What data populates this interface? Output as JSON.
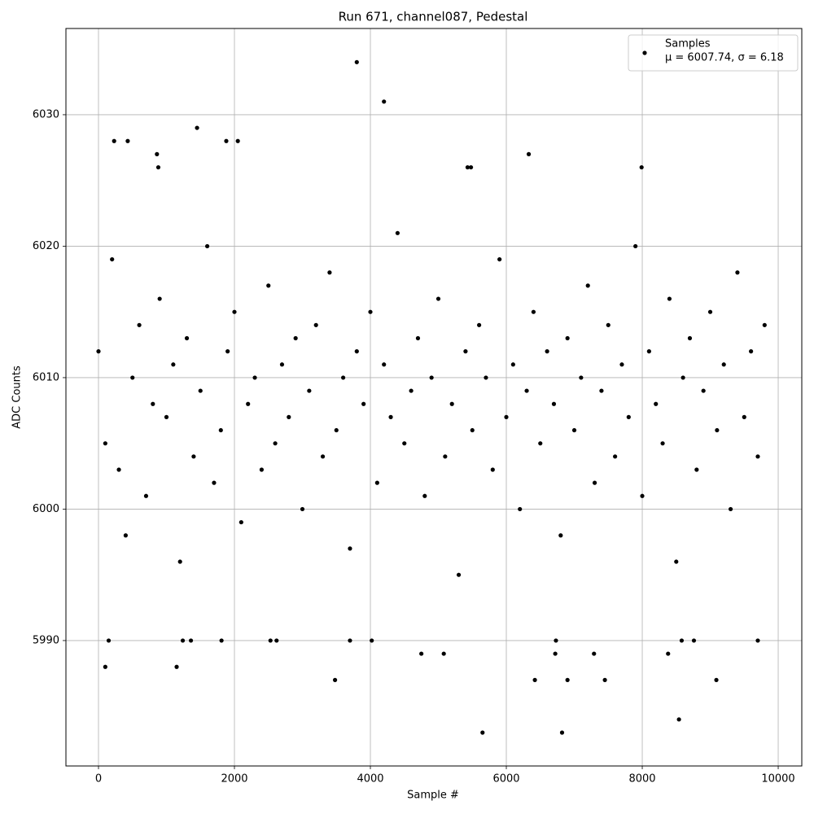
{
  "chart_data": {
    "type": "scatter",
    "title": "Run 671, channel087, Pedestal",
    "x_label": "Sample #",
    "y_label": "ADC Counts",
    "xlim": [
      -479,
      10347
    ],
    "ylim": [
      5980.46,
      6036.56
    ],
    "xticks": [
      0,
      2000,
      4000,
      6000,
      8000,
      10000
    ],
    "yticks": [
      5990,
      6000,
      6010,
      6020,
      6030
    ],
    "grid": true,
    "legend": "upper right",
    "legend_note": "μ = 6007.74, σ = 6.18",
    "series": [
      {
        "name": "Samples",
        "color": "#000000",
        "x": [
          3800,
          4200,
          1450,
          230,
          430,
          1880,
          2050,
          6330,
          860,
          880,
          5430,
          5480,
          7990,
          5650,
          6820,
          8540,
          100,
          1150,
          3480,
          6420,
          6900,
          7450,
          9090,
          150,
          1240,
          1360,
          1810,
          2530,
          2620,
          3700,
          4020,
          6730,
          8580,
          8760,
          9700,
          4750,
          5080,
          6720,
          7290,
          8380,
          0,
          100,
          200,
          300,
          400,
          500,
          600,
          700,
          800,
          900,
          1000,
          1100,
          1200,
          1300,
          1400,
          1500,
          1600,
          1700,
          1800,
          1900,
          2000,
          2100,
          2200,
          2300,
          2400,
          2500,
          2600,
          2700,
          2800,
          2900,
          3000,
          3100,
          3200,
          3300,
          3400,
          3500,
          3600,
          3700,
          3800,
          3900,
          4000,
          4100,
          4200,
          4300,
          4400,
          4500,
          4600,
          4700,
          4800,
          4900,
          5000,
          5100,
          5200,
          5300,
          5400,
          5500,
          5600,
          5700,
          5800,
          5900,
          6000,
          6100,
          6200,
          6300,
          6400,
          6500,
          6600,
          6700,
          6800,
          6900,
          7000,
          7100,
          7200,
          7300,
          7400,
          7500,
          7600,
          7700,
          7800,
          7900,
          8000,
          8100,
          8200,
          8300,
          8400,
          8500,
          8600,
          8700,
          8800,
          8900,
          9000,
          9100,
          9200,
          9300,
          9400,
          9500,
          9600,
          9700,
          9800
        ],
        "values": [
          6034,
          6031,
          6029,
          6028,
          6028,
          6028,
          6028,
          6027,
          6027,
          6026,
          6026,
          6026,
          6026,
          5983,
          5983,
          5984,
          5988,
          5988,
          5987,
          5987,
          5987,
          5987,
          5987,
          5990,
          5990,
          5990,
          5990,
          5990,
          5990,
          5990,
          5990,
          5990,
          5990,
          5990,
          5990,
          5989,
          5989,
          5989,
          5989,
          5989,
          6012,
          6005,
          6019,
          6003,
          5998,
          6010,
          6014,
          6001,
          6008,
          6016,
          6007,
          6011,
          5996,
          6013,
          6004,
          6009,
          6020,
          6002,
          6006,
          6012,
          6015,
          5999,
          6008,
          6010,
          6003,
          6017,
          6005,
          6011,
          6007,
          6013,
          6000,
          6009,
          6014,
          6004,
          6018,
          6006,
          6010,
          5997,
          6012,
          6008,
          6015,
          6002,
          6011,
          6007,
          6021,
          6005,
          6009,
          6013,
          6001,
          6010,
          6016,
          6004,
          6008,
          5995,
          6012,
          6006,
          6014,
          6010,
          6003,
          6019,
          6007,
          6011,
          6000,
          6009,
          6015,
          6005,
          6012,
          6008,
          5998,
          6013,
          6006,
          6010,
          6017,
          6002,
          6009,
          6014,
          6004,
          6011,
          6007,
          6020,
          6001,
          6012,
          6008,
          6005,
          6016,
          5996,
          6010,
          6013,
          6003,
          6009,
          6015,
          6006,
          6011,
          6000,
          6018,
          6007,
          6012,
          6004,
          6014
        ]
      }
    ]
  }
}
